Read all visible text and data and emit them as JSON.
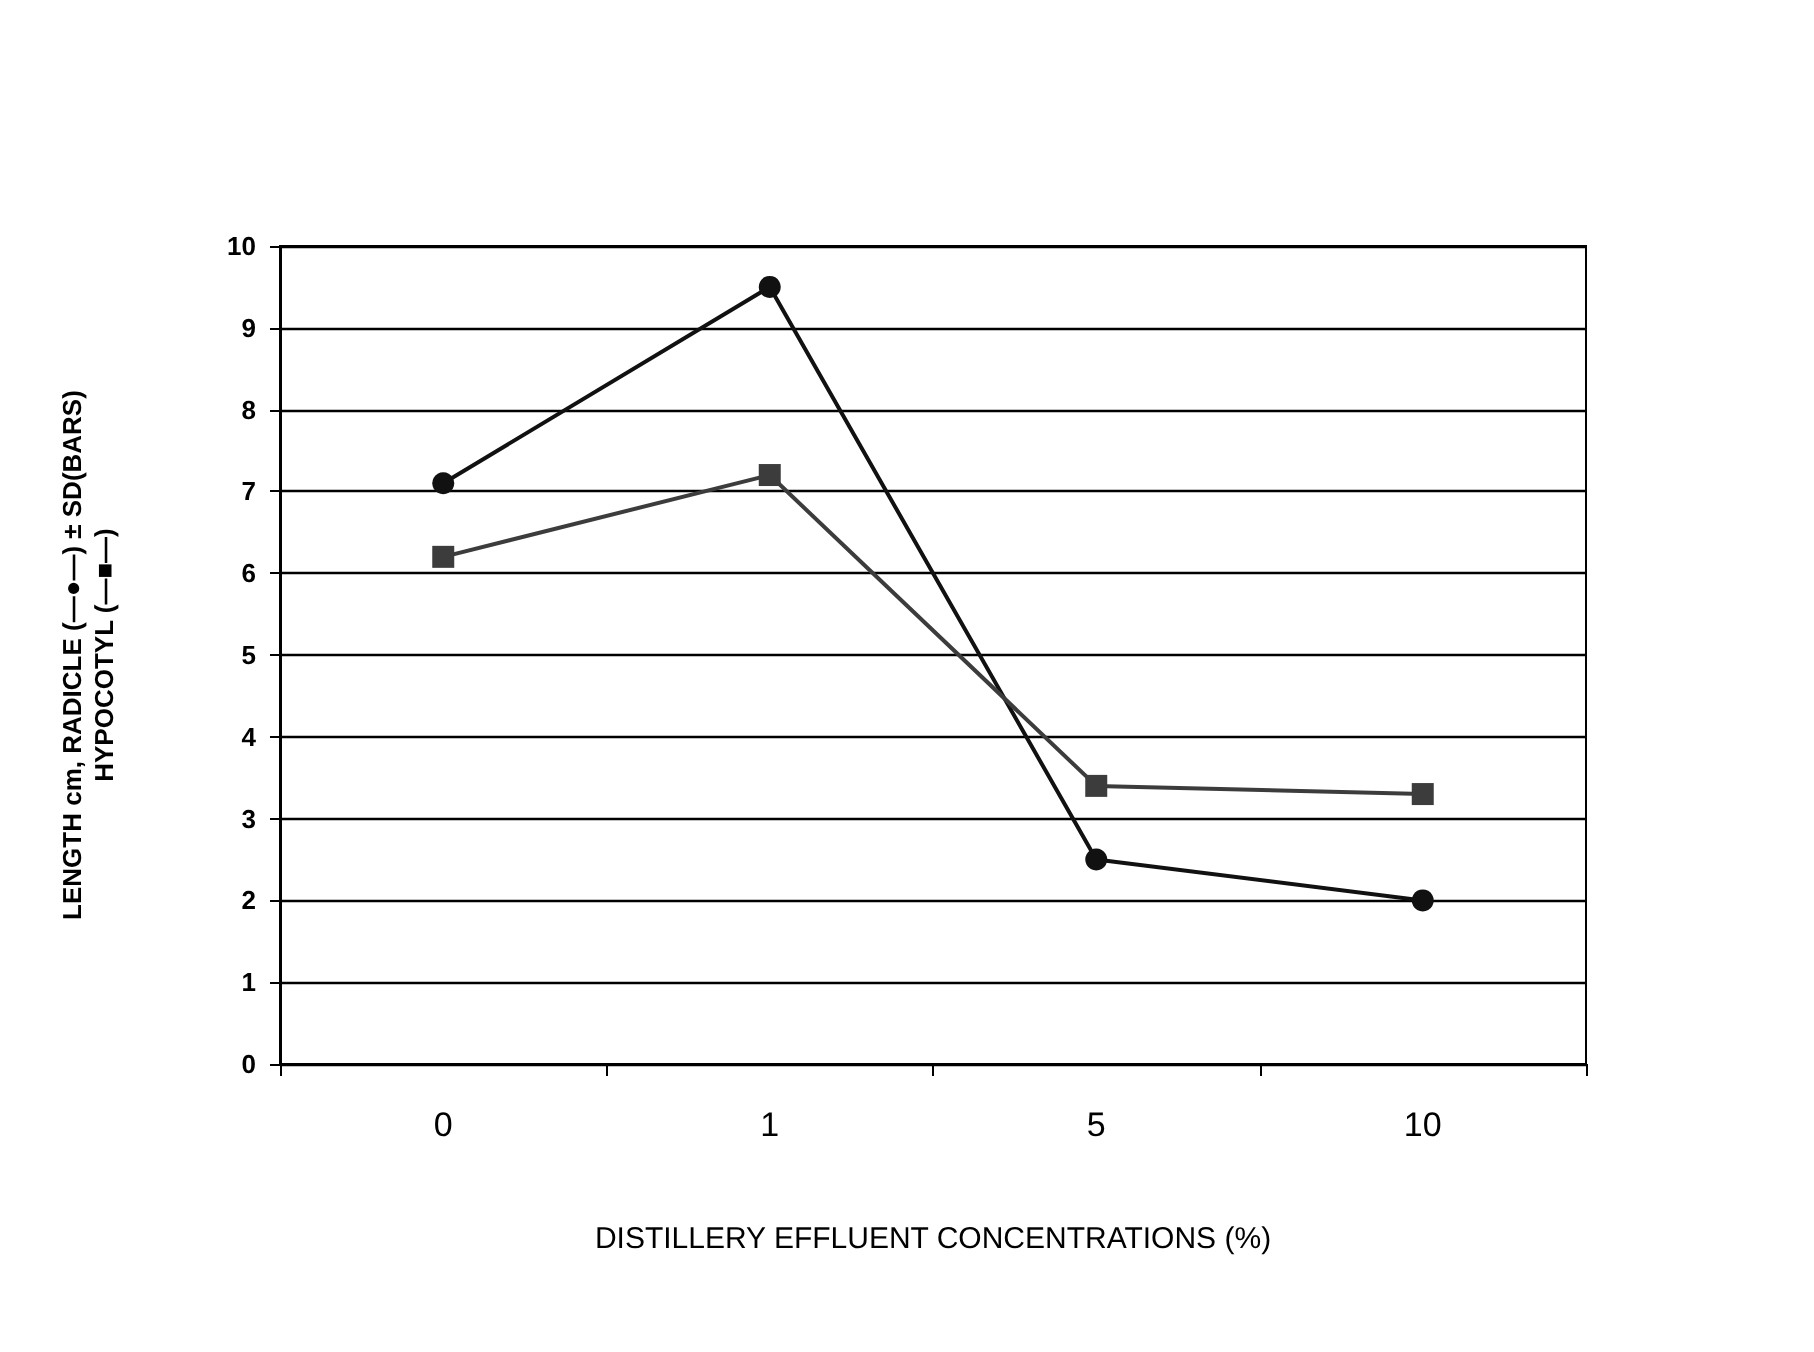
{
  "chart_data": {
    "type": "line",
    "xlabel": "DISTILLERY EFFLUENT CONCENTRATIONS (%)",
    "ylabel": "LENGTH cm, RADICLE (—●—) ± SD(BARS)\nHYPOCOTYL (—■—)",
    "categories": [
      "0",
      "1",
      "5",
      "10"
    ],
    "series": [
      {
        "color": "#111111",
        "marker": "circle",
        "values": [
          7.1,
          9.5,
          2.5,
          2.0
        ]
      },
      {
        "color": "#3c3c3c",
        "marker": "square",
        "values": [
          6.2,
          7.2,
          3.4,
          3.3
        ]
      }
    ],
    "ylim": [
      0,
      10
    ],
    "yticks": [
      0,
      1,
      2,
      3,
      4,
      5,
      6,
      7,
      8,
      9,
      10
    ],
    "grid": "y",
    "line_style": "solid"
  }
}
